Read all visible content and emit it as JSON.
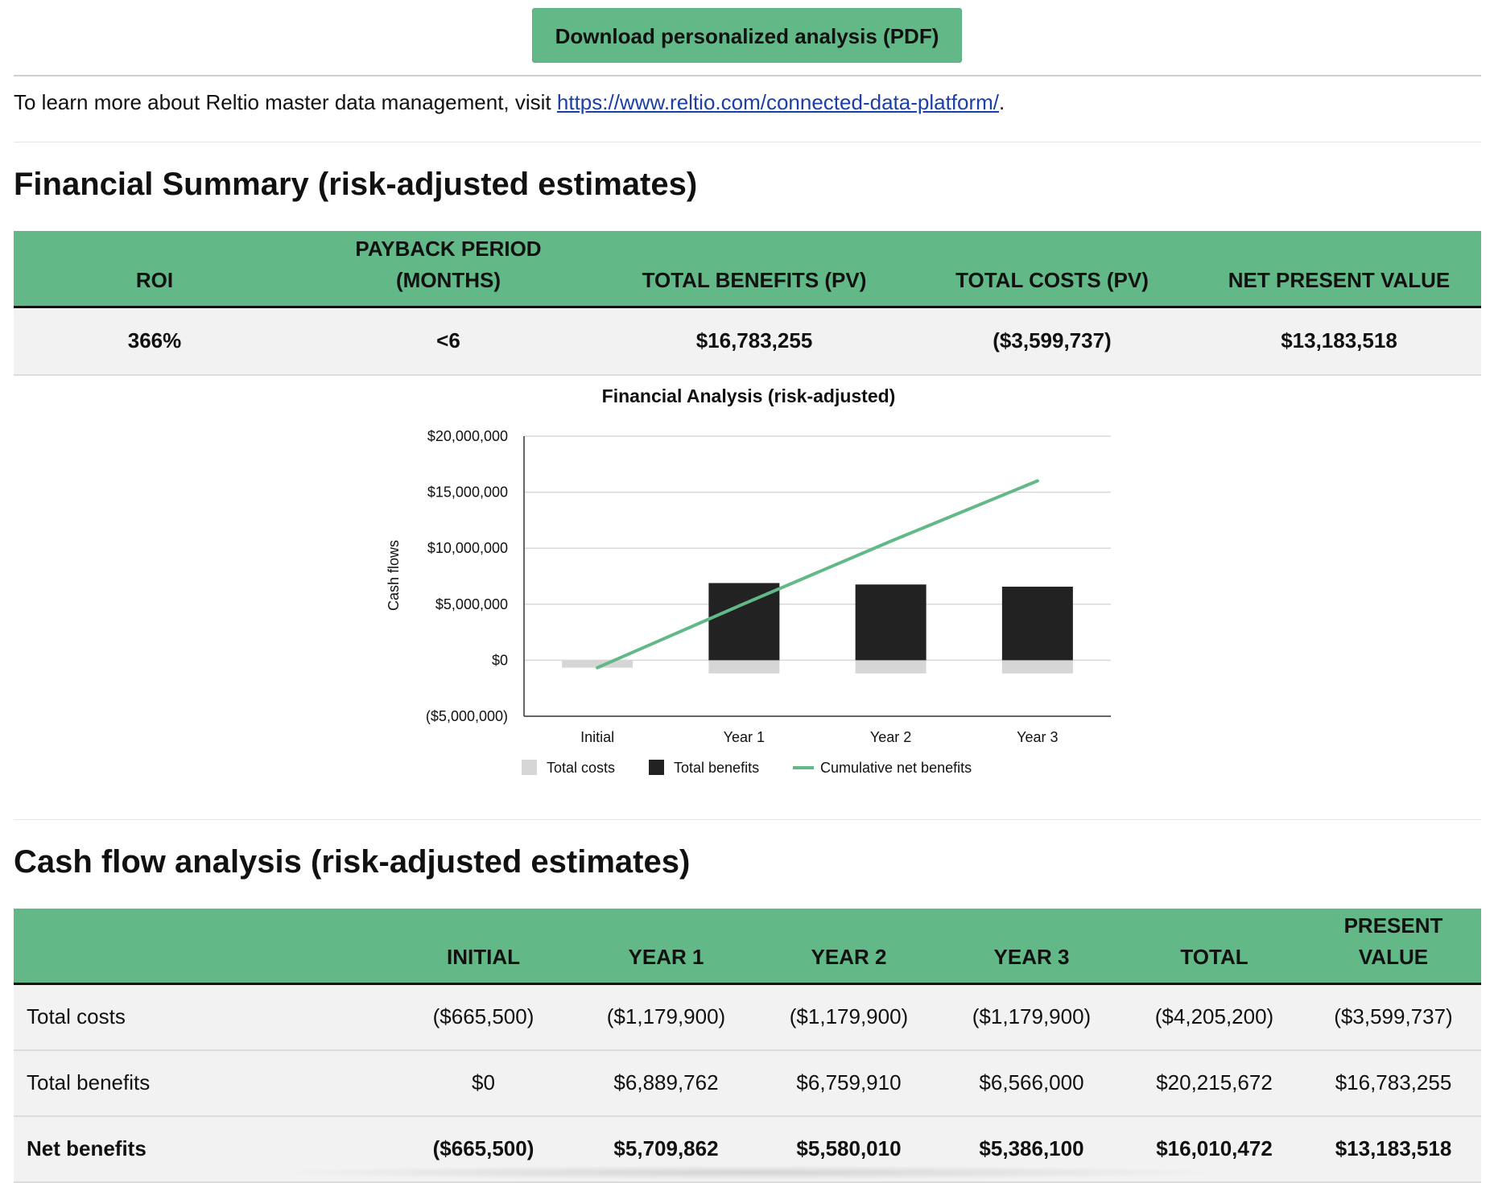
{
  "download": {
    "label": "Download personalized analysis (PDF)"
  },
  "learn_more": {
    "prefix": "To learn more about Reltio master data management, visit ",
    "link": "https://www.reltio.com/connected-data-platform/",
    "suffix": "."
  },
  "financial_summary": {
    "title": "Financial Summary (risk-adjusted estimates)",
    "headers": {
      "roi": "ROI",
      "payback_line1": "PAYBACK PERIOD",
      "payback_line2": "(MONTHS)",
      "benefits": "TOTAL BENEFITS (PV)",
      "costs": "TOTAL COSTS (PV)",
      "npv": "NET PRESENT VALUE"
    },
    "values": {
      "roi": "366%",
      "payback": "<6",
      "benefits": "$16,783,255",
      "costs": "($3,599,737)",
      "npv": "$13,183,518"
    }
  },
  "chart_data": {
    "type": "bar",
    "title": "Financial Analysis (risk-adjusted)",
    "ylabel": "Cash flows",
    "xlabel": "",
    "categories": [
      "Initial",
      "Year 1",
      "Year 2",
      "Year 3"
    ],
    "ylim": [
      -5000000,
      20000000
    ],
    "yticks": [
      20000000,
      15000000,
      10000000,
      5000000,
      0,
      -5000000
    ],
    "ytick_labels": [
      "$20,000,000",
      "$15,000,000",
      "$10,000,000",
      "$5,000,000",
      "$0",
      "($5,000,000)"
    ],
    "series": [
      {
        "name": "Total costs",
        "kind": "bar",
        "color": "#d6d6d6",
        "values": [
          -665500,
          -1179900,
          -1179900,
          -1179900
        ]
      },
      {
        "name": "Total benefits",
        "kind": "bar",
        "color": "#222222",
        "values": [
          0,
          6889762,
          6759910,
          6566000
        ]
      },
      {
        "name": "Cumulative net benefits",
        "kind": "line",
        "color": "#62b887",
        "values": [
          -665500,
          5044362,
          10624372,
          16010472
        ]
      }
    ],
    "grid": true,
    "legend_position": "bottom"
  },
  "cash_flow": {
    "title": "Cash flow analysis (risk-adjusted estimates)",
    "headers": {
      "label": "",
      "initial": "INITIAL",
      "year1": "YEAR 1",
      "year2": "YEAR 2",
      "year3": "YEAR 3",
      "total": "TOTAL",
      "pv_line1": "PRESENT",
      "pv_line2": "VALUE"
    },
    "rows": [
      {
        "label": "Total costs",
        "initial": "($665,500)",
        "year1": "($1,179,900)",
        "year2": "($1,179,900)",
        "year3": "($1,179,900)",
        "total": "($4,205,200)",
        "pv": "($3,599,737)"
      },
      {
        "label": "Total benefits",
        "initial": "$0",
        "year1": "$6,889,762",
        "year2": "$6,759,910",
        "year3": "$6,566,000",
        "total": "$20,215,672",
        "pv": "$16,783,255"
      },
      {
        "label": "Net benefits",
        "initial": "($665,500)",
        "year1": "$5,709,862",
        "year2": "$5,580,010",
        "year3": "$5,386,100",
        "total": "$16,010,472",
        "pv": "$13,183,518"
      }
    ]
  }
}
